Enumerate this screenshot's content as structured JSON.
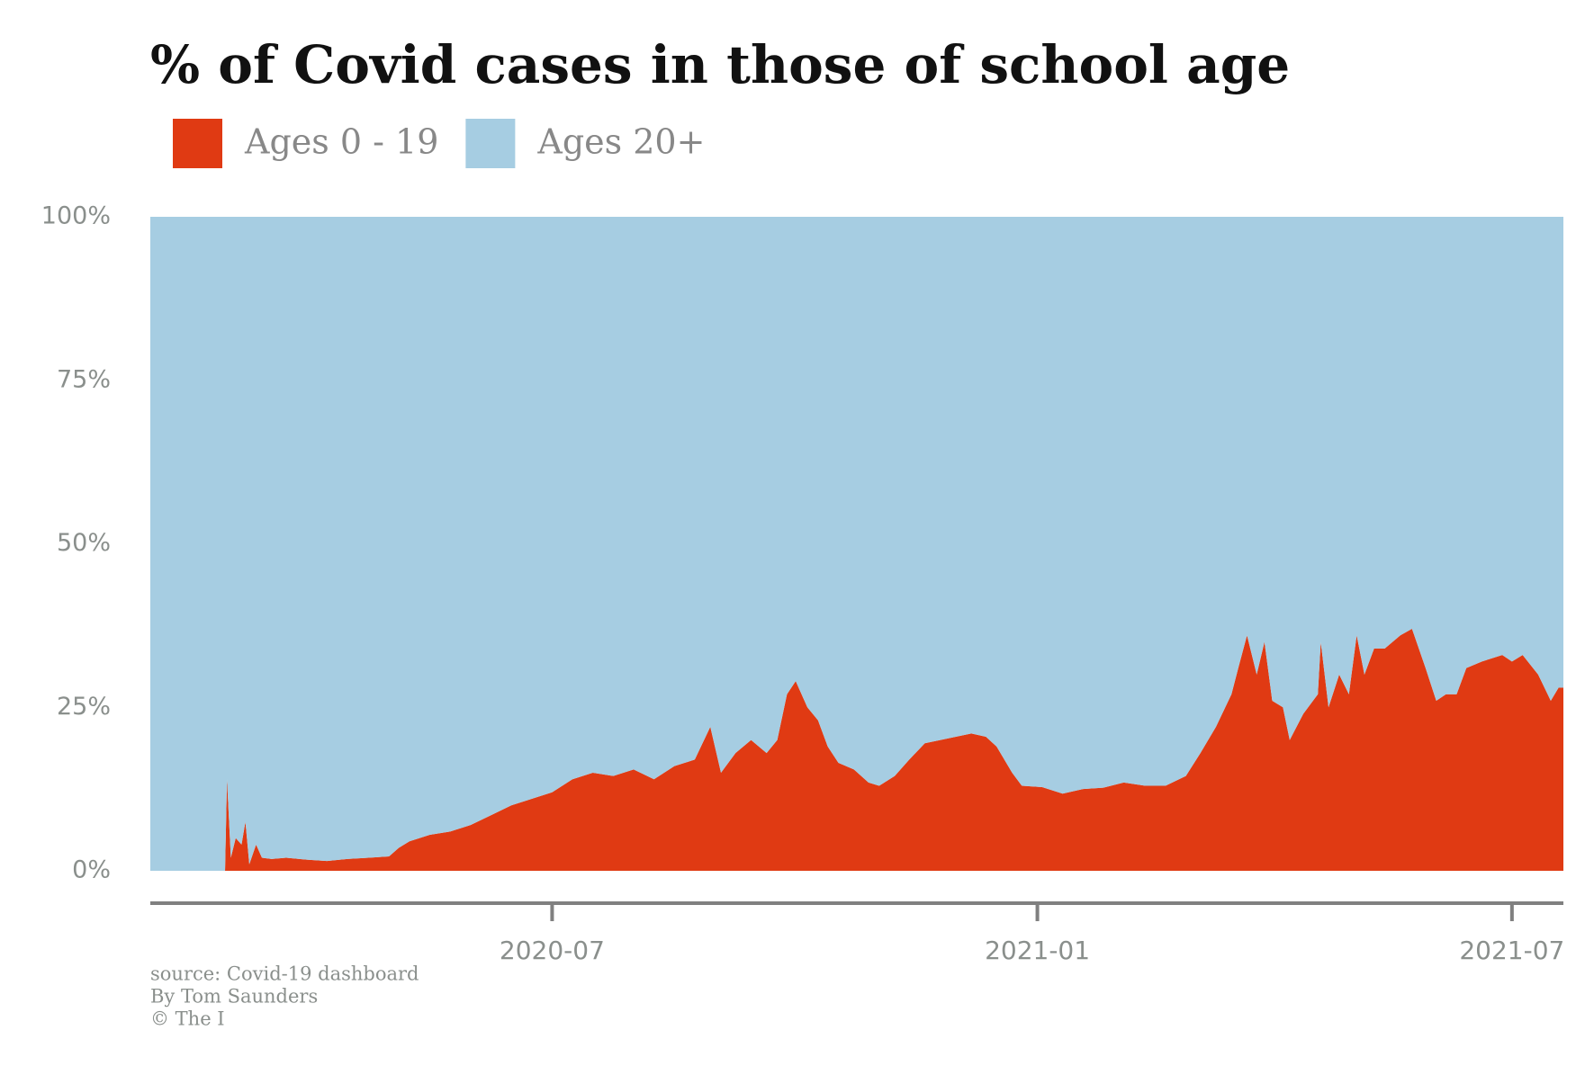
{
  "chart_data": {
    "type": "stacked-area",
    "title": "% of Covid cases in those of school age",
    "source": "source: Covid-19 dashboard",
    "byline": "By Tom Saunders",
    "credit": "© The I",
    "legend": "top-left",
    "x": [
      2020.086,
      2020.163,
      2020.165,
      2020.169,
      2020.174,
      2020.18,
      2020.184,
      2020.188,
      2020.195,
      2020.201,
      2020.211,
      2020.226,
      2020.247,
      2020.268,
      2020.289,
      2020.311,
      2020.332,
      2020.342,
      2020.353,
      2020.374,
      2020.395,
      2020.416,
      2020.437,
      2020.458,
      2020.479,
      2020.5,
      2020.521,
      2020.542,
      2020.563,
      2020.584,
      2020.605,
      2020.626,
      2020.647,
      2020.663,
      2020.674,
      2020.689,
      2020.705,
      2020.721,
      2020.732,
      2020.742,
      2020.751,
      2020.763,
      2020.774,
      2020.784,
      2020.795,
      2020.811,
      2020.826,
      2020.837,
      2020.853,
      2020.868,
      2020.884,
      2020.9,
      2020.916,
      2020.932,
      2020.947,
      2020.958,
      2020.974,
      2020.984,
      2021.005,
      2021.026,
      2021.047,
      2021.068,
      2021.089,
      2021.111,
      2021.132,
      2021.153,
      2021.168,
      2021.184,
      2021.2,
      2021.207,
      2021.216,
      2021.226,
      2021.234,
      2021.242,
      2021.253,
      2021.26,
      2021.274,
      2021.289,
      2021.292,
      2021.3,
      2021.311,
      2021.321,
      2021.329,
      2021.337,
      2021.347,
      2021.358,
      2021.374,
      2021.386,
      2021.4,
      2021.411,
      2021.421,
      2021.432,
      2021.442,
      2021.458,
      2021.479,
      2021.489,
      2021.5,
      2021.516,
      2021.529,
      2021.537,
      2021.542
    ],
    "series": [
      {
        "name": "Ages 0 - 19",
        "color": "#e03a13",
        "values": [
          0,
          0,
          14,
          2,
          5,
          4,
          7.5,
          1,
          4,
          2,
          1.8,
          2,
          1.7,
          1.5,
          1.8,
          2,
          2.2,
          3.5,
          4.5,
          5.5,
          6,
          7,
          8.5,
          10,
          11,
          12,
          14,
          15,
          14.5,
          15.5,
          14,
          16,
          17,
          22,
          15,
          18,
          20,
          18,
          20,
          27,
          29,
          25,
          23,
          19,
          16.5,
          15.5,
          13.5,
          13,
          14.5,
          17,
          19.5,
          20,
          20.5,
          21,
          20.5,
          19,
          15,
          13,
          12.8,
          11.8,
          12.5,
          12.7,
          13.5,
          13,
          13,
          14.5,
          18,
          22,
          27,
          31,
          36,
          30,
          35,
          26,
          25,
          20,
          24,
          27,
          35,
          25,
          30,
          27,
          36,
          30,
          34,
          34,
          36,
          37,
          31,
          26,
          27,
          27,
          31,
          32,
          33,
          32,
          33,
          30,
          26,
          28,
          28
        ]
      },
      {
        "name": "Ages 20+",
        "color": "#a6cde2",
        "values": [
          100,
          100,
          86,
          98,
          95,
          96,
          92.5,
          99,
          96,
          98,
          98.2,
          98,
          98.3,
          98.5,
          98.2,
          98,
          97.8,
          96.5,
          95.5,
          94.5,
          94,
          93,
          91.5,
          90,
          89,
          88,
          86,
          85,
          85.5,
          84.5,
          86,
          84,
          83,
          78,
          85,
          82,
          80,
          82,
          80,
          73,
          71,
          75,
          77,
          81,
          83.5,
          84.5,
          86.5,
          87,
          85.5,
          83,
          80.5,
          80,
          79.5,
          79,
          79.5,
          81,
          85,
          87,
          87.2,
          88.2,
          87.5,
          87.3,
          86.5,
          87,
          87,
          85.5,
          82,
          78,
          73,
          69,
          64,
          70,
          65,
          74,
          75,
          80,
          76,
          73,
          65,
          75,
          70,
          73,
          64,
          70,
          66,
          66,
          64,
          63,
          69,
          74,
          73,
          73,
          69,
          68,
          67,
          68,
          67,
          70,
          74,
          72,
          72
        ]
      }
    ],
    "xlim": [
      2020.086,
      2021.542
    ],
    "xticks": [
      {
        "value": 2020.5,
        "label": "2020-07"
      },
      {
        "value": 2021.0,
        "label": "2021-01"
      },
      {
        "value": 2021.489,
        "label": "2021-07"
      }
    ],
    "ylim": [
      0,
      100
    ],
    "yticks": [
      {
        "value": 0,
        "label": "0%"
      },
      {
        "value": 25,
        "label": "25%"
      },
      {
        "value": 50,
        "label": "50%"
      },
      {
        "value": 75,
        "label": "75%"
      },
      {
        "value": 100,
        "label": "100%"
      }
    ],
    "grid": false
  }
}
